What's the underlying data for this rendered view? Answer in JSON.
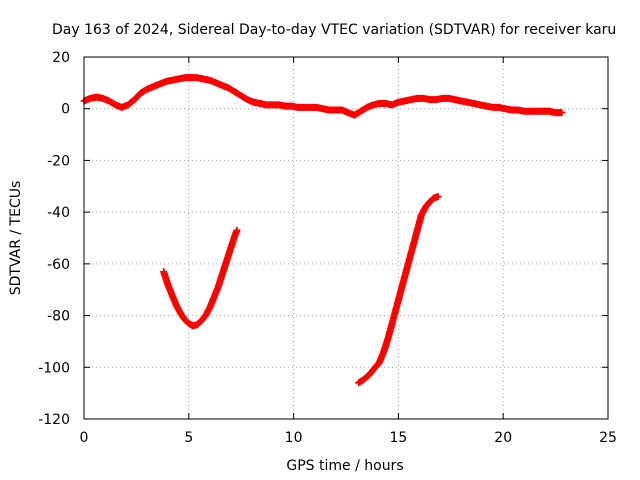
{
  "chart_data": {
    "type": "scatter",
    "title": "Day 163 of 2024, Sidereal Day-to-day VTEC variation (SDTVAR) for receiver karu",
    "xlabel": "GPS time / hours",
    "ylabel": "SDTVAR / TECUs",
    "xlim": [
      0,
      25
    ],
    "ylim": [
      -120,
      20
    ],
    "xticks": [
      0,
      5,
      10,
      15,
      20,
      25
    ],
    "yticks": [
      -120,
      -100,
      -80,
      -60,
      -40,
      -20,
      0,
      20
    ],
    "grid": true,
    "legend": "none",
    "series": [
      {
        "name": "SDTVAR",
        "color": "#ff0000",
        "segments": [
          {
            "x": [
              0.0,
              0.3,
              0.6,
              0.9,
              1.2,
              1.5,
              1.8,
              2.1,
              2.4,
              2.7,
              3.0,
              3.3,
              3.6,
              3.9,
              4.2,
              4.5,
              4.8,
              5.1,
              5.4,
              5.7,
              6.0,
              6.3,
              6.6,
              6.9,
              7.2,
              7.5,
              7.8,
              8.1,
              8.4,
              8.7,
              9.0,
              9.3,
              9.6,
              9.9,
              10.2,
              10.5,
              10.8,
              11.1,
              11.4,
              11.7,
              12.0,
              12.3,
              12.6,
              12.9,
              13.2,
              13.5,
              13.8,
              14.1,
              14.4,
              14.7,
              15.0,
              15.3,
              15.6,
              15.9,
              16.2,
              16.5,
              16.8,
              17.1,
              17.4,
              17.7,
              18.0,
              18.3,
              18.6,
              18.9,
              19.2,
              19.5,
              19.8,
              20.1,
              20.4,
              20.7,
              21.0,
              21.3,
              21.6,
              21.9,
              22.2,
              22.5,
              22.8
            ],
            "y": [
              3,
              4,
              4.5,
              4,
              3,
              1.5,
              0.5,
              1.5,
              3.5,
              6,
              7.5,
              8.5,
              9.5,
              10.5,
              11,
              11.5,
              12,
              12,
              12,
              11.5,
              11,
              10,
              9,
              8,
              6.5,
              5,
              3.5,
              2.5,
              2,
              1.5,
              1.5,
              1.5,
              1,
              1,
              0.5,
              0.5,
              0.5,
              0.5,
              0,
              -0.5,
              -0.5,
              -0.5,
              -1.5,
              -2.5,
              -1,
              0.5,
              1.5,
              2,
              2,
              1.5,
              2.5,
              3,
              3.5,
              4,
              4,
              3.5,
              3.5,
              4,
              4,
              3.5,
              3,
              2.5,
              2,
              1.5,
              1,
              0.5,
              0.5,
              0,
              -0.5,
              -0.5,
              -1,
              -1,
              -1,
              -1,
              -1,
              -1.5,
              -1.5
            ]
          },
          {
            "x": [
              3.8,
              4.0,
              4.2,
              4.4,
              4.6,
              4.8,
              5.0,
              5.2,
              5.4,
              5.6,
              5.8,
              6.0,
              6.2,
              6.4,
              6.6,
              6.8,
              7.0,
              7.2,
              7.3
            ],
            "y": [
              -63,
              -68,
              -72,
              -76,
              -79,
              -81.5,
              -83,
              -84,
              -83.5,
              -82,
              -80,
              -77,
              -73,
              -69,
              -64,
              -59,
              -54,
              -49,
              -47
            ]
          },
          {
            "x": [
              13.1,
              13.3,
              13.6,
              13.9,
              14.1,
              14.3,
              14.5,
              14.7,
              14.9,
              15.1,
              15.3,
              15.5,
              15.7,
              15.9,
              16.1,
              16.3,
              16.5,
              16.7,
              16.9
            ],
            "y": [
              -106,
              -105,
              -103,
              -100,
              -98,
              -94,
              -89,
              -83,
              -77,
              -71,
              -65,
              -59,
              -53,
              -47,
              -41,
              -38,
              -36,
              -34.5,
              -34
            ]
          }
        ]
      }
    ]
  }
}
